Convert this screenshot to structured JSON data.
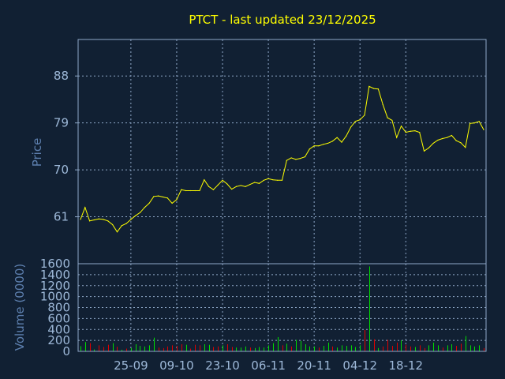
{
  "chart_data": [
    {
      "type": "line",
      "title": "PTCT - last updated 23/12/2025",
      "xlabel": "",
      "ylabel": "Price",
      "yticks": [
        61,
        70,
        79,
        88
      ],
      "ylim": [
        52,
        95
      ],
      "xticks": [
        "25-09",
        "09-10",
        "23-10",
        "06-11",
        "20-11",
        "04-12",
        "18-12"
      ],
      "xtick_index": [
        11,
        21,
        31,
        41,
        51,
        61,
        71
      ],
      "grid": true,
      "colors": {
        "line": "#ffff00",
        "background": "#112033",
        "axis": "#8fa8c8",
        "grid": "#8fa8c8"
      },
      "values": [
        60.5,
        62.8,
        60.2,
        60.4,
        60.6,
        60.5,
        60.2,
        59.5,
        58.1,
        59.3,
        59.7,
        60.5,
        61.2,
        61.8,
        62.8,
        63.6,
        64.9,
        65.0,
        64.8,
        64.6,
        63.6,
        64.3,
        66.2,
        66.0,
        66.0,
        66.0,
        66.0,
        68.1,
        66.8,
        66.2,
        67.1,
        68.0,
        67.3,
        66.3,
        66.8,
        67.0,
        66.8,
        67.2,
        67.6,
        67.4,
        68.0,
        68.3,
        68.1,
        68.0,
        68.0,
        71.8,
        72.3,
        72.0,
        72.2,
        72.5,
        74.0,
        74.6,
        74.6,
        74.9,
        75.1,
        75.5,
        76.2,
        75.3,
        76.5,
        78.2,
        79.3,
        79.6,
        80.5,
        86.0,
        85.6,
        85.5,
        82.5,
        80.0,
        79.5,
        76.2,
        78.4,
        77.2,
        77.4,
        77.5,
        77.2,
        73.6,
        74.2,
        75.1,
        75.7,
        76.0,
        76.2,
        76.6,
        75.6,
        75.2,
        74.3,
        78.9,
        79.0,
        79.3,
        77.7
      ]
    },
    {
      "type": "bar",
      "title": "",
      "xlabel": "",
      "ylabel": "Volume (0000)",
      "yticks": [
        0,
        200,
        400,
        600,
        800,
        1000,
        1200,
        1400,
        1600
      ],
      "ylim": [
        0,
        1600
      ],
      "grid": true,
      "colors": {
        "up": "#00dd00",
        "down": "#dd0000"
      },
      "values": [
        95,
        170,
        150,
        35,
        110,
        80,
        120,
        150,
        85,
        30,
        50,
        60,
        130,
        100,
        90,
        110,
        250,
        70,
        60,
        90,
        110,
        100,
        130,
        120,
        50,
        120,
        110,
        130,
        120,
        80,
        90,
        110,
        130,
        80,
        70,
        70,
        90,
        70,
        60,
        80,
        70,
        110,
        150,
        260,
        110,
        140,
        90,
        210,
        190,
        130,
        90,
        90,
        70,
        100,
        160,
        90,
        70,
        110,
        100,
        110,
        80,
        110,
        390,
        1550,
        220,
        60,
        90,
        210,
        100,
        160,
        200,
        120,
        90,
        80,
        110,
        60,
        110,
        160,
        110,
        70,
        110,
        130,
        100,
        140,
        280,
        110,
        90,
        110,
        60
      ],
      "up": [
        true,
        true,
        false,
        true,
        false,
        false,
        false,
        true,
        false,
        true,
        false,
        true,
        true,
        true,
        true,
        true,
        true,
        false,
        false,
        false,
        false,
        false,
        false,
        true,
        false,
        false,
        false,
        true,
        true,
        false,
        false,
        true,
        false,
        false,
        true,
        true,
        true,
        false,
        true,
        true,
        true,
        true,
        true,
        true,
        false,
        true,
        false,
        true,
        true,
        true,
        true,
        true,
        false,
        true,
        true,
        false,
        true,
        true,
        true,
        true,
        true,
        true,
        false,
        true,
        false,
        true,
        false,
        false,
        false,
        false,
        true,
        false,
        false,
        true,
        false,
        false,
        true,
        true,
        true,
        false,
        true,
        true,
        false,
        false,
        true,
        true,
        true,
        true,
        false
      ]
    }
  ]
}
